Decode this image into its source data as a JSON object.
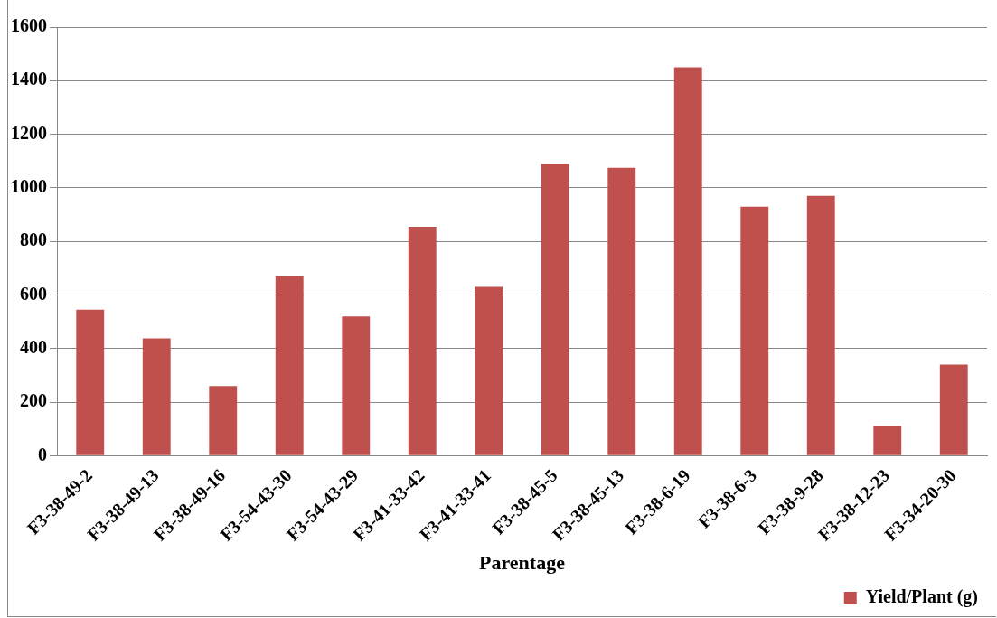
{
  "chart_data": {
    "type": "bar",
    "xlabel": "Parentage",
    "categories": [
      "F3-38-49-2",
      "F3-38-49-13",
      "F3-38-49-16",
      "F3-54-43-30",
      "F3-54-43-29",
      "F3-41-33-42",
      "F3-41-33-41",
      "F3-38-45-5",
      "F3-38-45-13",
      "F3-38-6-19",
      "F3-38-6-3",
      "F3-38-9-28",
      "F3-38-12-23",
      "F3-34-20-30"
    ],
    "series": [
      {
        "name": "Yield/Plant (g)",
        "color": "#c0504d",
        "values": [
          545,
          438,
          260,
          670,
          520,
          855,
          630,
          1090,
          1075,
          1450,
          930,
          970,
          110,
          340
        ]
      }
    ],
    "ylim": [
      0,
      1600
    ],
    "yticks": [
      0,
      200,
      400,
      600,
      800,
      1000,
      1200,
      1400,
      1600
    ],
    "grid": "y",
    "legend": "bottom right"
  }
}
